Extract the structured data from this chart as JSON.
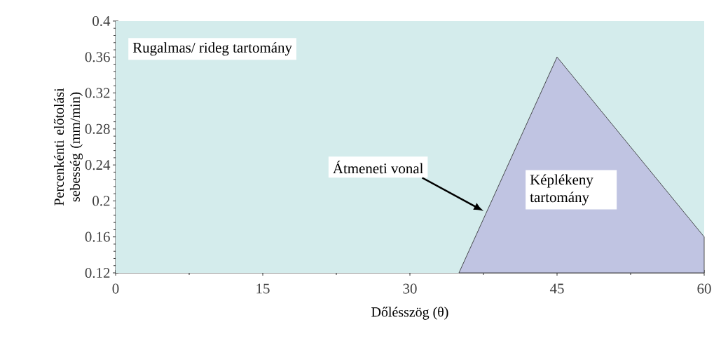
{
  "chart_data": {
    "type": "area",
    "xlabel": "Dőlésszög (θ)",
    "ylabel": "Percenkénti előtolási sebesség (mm/min)",
    "x": [
      35,
      45,
      60
    ],
    "series": [
      {
        "color": "#c0c4e2",
        "values": [
          0.12,
          0.36,
          0.16
        ]
      }
    ],
    "xlim": [
      0,
      60
    ],
    "ylim": [
      0.12,
      0.4
    ],
    "xticks": [
      0,
      15,
      30,
      45,
      60
    ],
    "yticks": [
      0.12,
      0.16,
      0.2,
      0.24,
      0.28,
      0.32,
      0.36,
      0.4
    ],
    "bands": [
      {
        "axis": "y",
        "from": 0.12,
        "to": 0.4,
        "label": "Rugalmas/ rideg tartomány",
        "color": "#d4ecec"
      }
    ],
    "annotations": [
      "Átmeneti vonal",
      "Képlékeny tartomány"
    ]
  }
}
